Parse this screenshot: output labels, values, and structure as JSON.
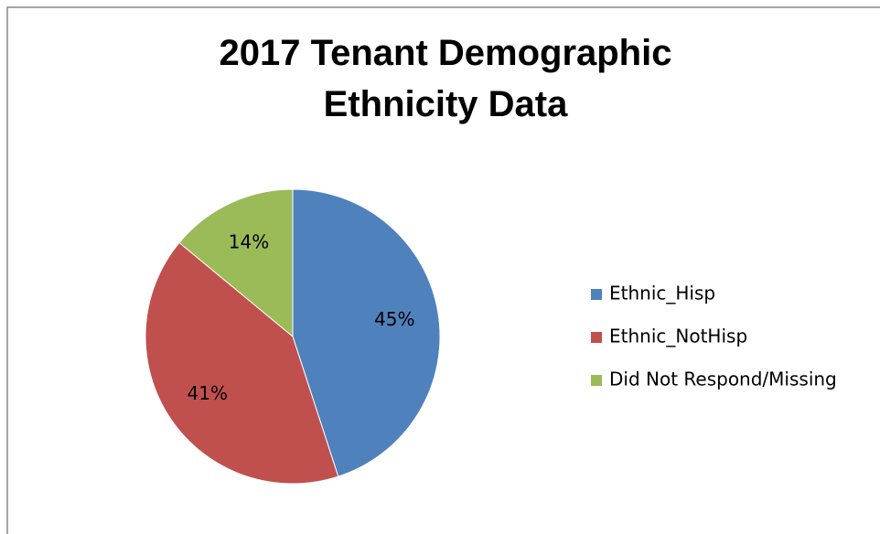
{
  "chart_data": {
    "type": "pie",
    "title": "2017 Tenant Demographic Ethnicity Data",
    "categories": [
      "Ethnic_Hisp",
      "Ethnic_NotHisp",
      "Did Not Respond/Missing"
    ],
    "values": [
      45,
      41,
      14
    ],
    "value_labels": [
      "45%",
      "41%",
      "14%"
    ],
    "colors": [
      "#4f81bd",
      "#c0504d",
      "#9bbb59"
    ],
    "legend": "right"
  }
}
